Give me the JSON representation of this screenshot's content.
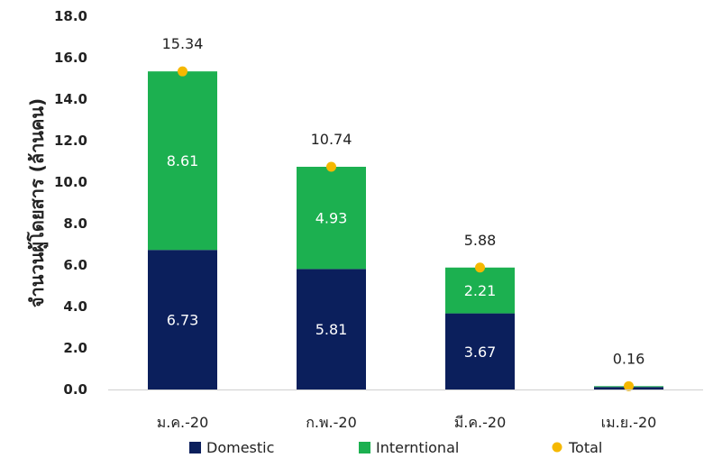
{
  "chart_data": {
    "type": "bar",
    "stacked": true,
    "categories": [
      "ม.ค.-20",
      "ก.พ.-20",
      "มี.ค.-20",
      "เม.ย.-20"
    ],
    "series": [
      {
        "name": "Domestic",
        "values": [
          6.73,
          5.81,
          3.67,
          0.12
        ],
        "value_labels": [
          "6.73",
          "5.81",
          "3.67",
          ""
        ],
        "color": "#0b1f5c"
      },
      {
        "name": "Interntional",
        "values": [
          8.61,
          4.93,
          2.21,
          0.04
        ],
        "value_labels": [
          "8.61",
          "4.93",
          "2.21",
          ""
        ],
        "color": "#1cb050"
      },
      {
        "name": "Total",
        "values": [
          15.34,
          10.74,
          5.88,
          0.16
        ],
        "value_labels": [
          "15.34",
          "10.74",
          "5.88",
          "0.16"
        ],
        "color": "#f5b800",
        "marker": "dot"
      }
    ],
    "ylabel": "จำนวนผู้โดยสาร  (ล้านคน)",
    "xlabel": "",
    "ylim": [
      0,
      18
    ],
    "yticks": [
      "0.0",
      "2.0",
      "4.0",
      "6.0",
      "8.0",
      "10.0",
      "12.0",
      "14.0",
      "16.0",
      "18.0"
    ],
    "grid": false,
    "legend": "bottom"
  }
}
